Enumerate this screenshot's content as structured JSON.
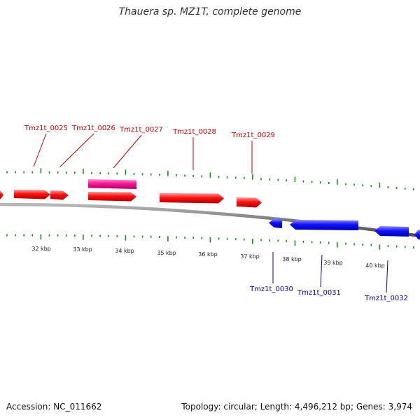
{
  "title": "Thauera sp. MZ1T, complete genome",
  "footer": {
    "accession": "Accession: NC_011662",
    "summary": "Topology: circular; Length: 4,496,212 bp; Genes: 3,974"
  },
  "colors": {
    "forward_gene": "#ff0000",
    "reverse_gene": "#0000ff",
    "highlight_gene": "#ff1493",
    "forward_label": "#cc0000",
    "reverse_label": "#000099",
    "tick": "#1a8c1a",
    "backbone": "#808080"
  },
  "ticks": [
    {
      "label": "32 kbp"
    },
    {
      "label": "33 kbp"
    },
    {
      "label": "34 kbp"
    },
    {
      "label": "35 kbp"
    },
    {
      "label": "36 kbp"
    },
    {
      "label": "37 kbp"
    },
    {
      "label": "38 kbp"
    },
    {
      "label": "39 kbp"
    },
    {
      "label": "40 kbp"
    }
  ],
  "forward_genes": [
    {
      "label": ""
    },
    {
      "label": "Tmz1t_0025"
    },
    {
      "label": "Tmz1t_0026"
    },
    {
      "label": "Tmz1t_0027"
    },
    {
      "label": "Tmz1t_0028"
    },
    {
      "label": "Tmz1t_0029"
    }
  ],
  "reverse_genes": [
    {
      "label": "Tmz1t_0030"
    },
    {
      "label": "Tmz1t_0031"
    },
    {
      "label": "Tmz1t_0032"
    },
    {
      "label": ""
    }
  ]
}
